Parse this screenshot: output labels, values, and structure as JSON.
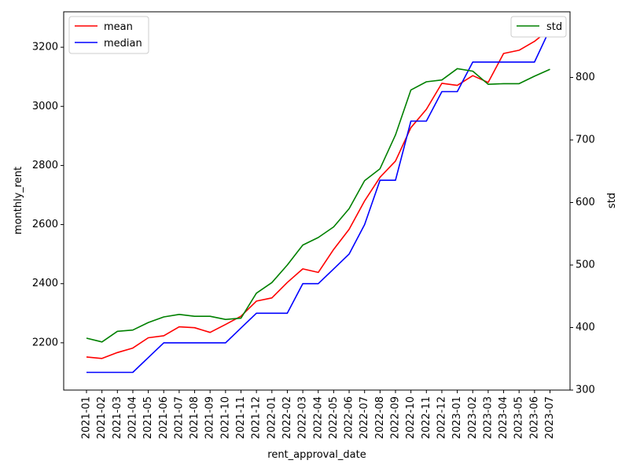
{
  "chart_data": {
    "type": "line",
    "title": "",
    "xlabel": "rent_approval_date",
    "ylabel": "monthly_rent",
    "y2label": "std",
    "categories": [
      "2021-01",
      "2021-02",
      "2021-03",
      "2021-04",
      "2021-05",
      "2021-06",
      "2021-07",
      "2021-08",
      "2021-09",
      "2021-10",
      "2021-11",
      "2021-12",
      "2022-01",
      "2022-02",
      "2022-03",
      "2022-04",
      "2022-05",
      "2022-06",
      "2022-07",
      "2022-08",
      "2022-09",
      "2022-10",
      "2022-11",
      "2022-12",
      "2023-01",
      "2023-02",
      "2023-03",
      "2023-04",
      "2023-05",
      "2023-06",
      "2023-07"
    ],
    "ylim": [
      2040,
      3320
    ],
    "y2lim": [
      300,
      905
    ],
    "yticks": [
      2200,
      2400,
      2600,
      2800,
      3000,
      3200
    ],
    "y2ticks": [
      300,
      400,
      500,
      600,
      700,
      800
    ],
    "grid": false,
    "legend_left_placement": "top-left",
    "legend_right_placement": "top-right",
    "series": [
      {
        "name": "mean",
        "axis": "left",
        "color": "#ff0000",
        "values": [
          2152,
          2147,
          2167,
          2182,
          2217,
          2224,
          2254,
          2251,
          2235,
          2262,
          2290,
          2341,
          2352,
          2404,
          2450,
          2438,
          2516,
          2584,
          2680,
          2760,
          2815,
          2928,
          2990,
          3078,
          3071,
          3104,
          3081,
          3179,
          3190,
          3220,
          3262
        ]
      },
      {
        "name": "median",
        "axis": "left",
        "color": "#0000ff",
        "values": [
          2100,
          2100,
          2100,
          2100,
          2150,
          2200,
          2200,
          2200,
          2200,
          2200,
          2250,
          2300,
          2300,
          2300,
          2400,
          2400,
          2450,
          2500,
          2600,
          2750,
          2750,
          2950,
          2950,
          3050,
          3050,
          3150,
          3150,
          3150,
          3150,
          3150,
          3262
        ]
      },
      {
        "name": "std",
        "axis": "right",
        "color": "#008000",
        "values": [
          383,
          377,
          394,
          396,
          408,
          417,
          421,
          418,
          418,
          413,
          415,
          455,
          472,
          500,
          532,
          544,
          561,
          590,
          635,
          654,
          708,
          780,
          793,
          796,
          814,
          810,
          789,
          790,
          790,
          802,
          813
        ]
      }
    ]
  }
}
